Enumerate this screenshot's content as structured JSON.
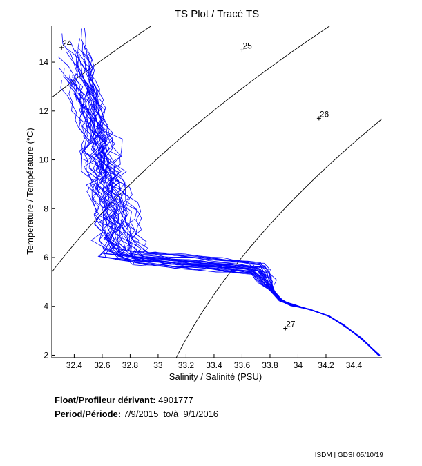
{
  "chart_data": {
    "type": "line",
    "title": "TS Plot / Tracé TS",
    "xlabel": "Salinity / Salinité (PSU)",
    "ylabel": "Temperature / Température (°C)",
    "xlim": [
      32.24,
      34.6
    ],
    "ylim": [
      1.9,
      15.5
    ],
    "x_ticks": [
      "32.4",
      "32.6",
      "32.8",
      "33",
      "33.2",
      "33.4",
      "33.6",
      "33.8",
      "34",
      "34.2",
      "34.4"
    ],
    "y_ticks": [
      "2",
      "4",
      "6",
      "8",
      "10",
      "12",
      "14"
    ],
    "grid": false,
    "series_color": "#0000ff",
    "isopycnal_color": "#000000",
    "isopycnals": [
      {
        "label": "24",
        "sigma": 24,
        "label_at": [
          32.31,
          14.6
        ]
      },
      {
        "label": "25",
        "sigma": 25,
        "label_at": [
          33.6,
          14.5
        ]
      },
      {
        "label": "26",
        "sigma": 26,
        "label_at": [
          34.15,
          11.7
        ]
      },
      {
        "label": "27",
        "sigma": 27,
        "label_at": [
          33.91,
          3.1
        ]
      }
    ],
    "profiles_summary": {
      "count": 36,
      "surface": {
        "S": [
          32.3,
          32.5
        ],
        "T": [
          13.0,
          15.4
        ]
      },
      "thermocline": {
        "S": [
          32.6,
          33.0
        ],
        "T": [
          5.8,
          8.5
        ]
      },
      "mixed_layer": {
        "S": [
          32.72,
          33.8
        ],
        "T": [
          5.0,
          5.9
        ]
      },
      "deep": {
        "S": [
          33.8,
          34.58
        ],
        "T": [
          2.0,
          4.4
        ]
      }
    }
  },
  "info": {
    "float_label": "Float/Profileur dérivant:",
    "float_value": "4901777",
    "period_label": "Period/Période:",
    "period_value": "7/9/2015  to/à  9/1/2016"
  },
  "credit": "ISDM | GDSI  05/10/19"
}
